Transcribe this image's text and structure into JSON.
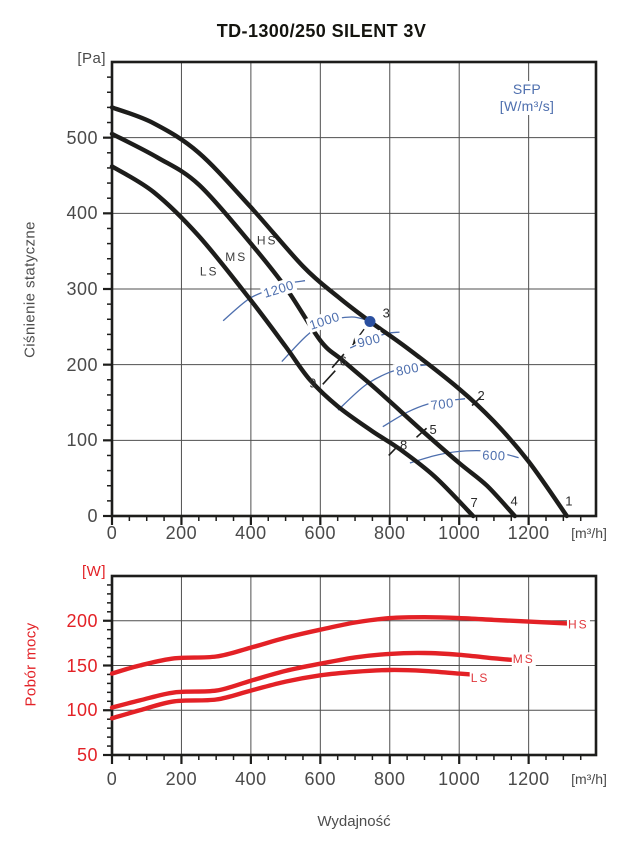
{
  "title": "TD-1300/250 SILENT 3V",
  "xlabel": "Wydajność",
  "colors": {
    "fan_curve": "#1d1d1b",
    "sfp": "#4e6fae",
    "operating_dot": "#2a4f9f",
    "power": "#e32126",
    "power_label": "#e0383d",
    "grid": "#4f4f4f",
    "axis": "#1d1d1b",
    "text": "#4a4a4a"
  },
  "chart_data": [
    {
      "type": "line",
      "name": "static-pressure",
      "title": "",
      "ylabel": "Ciśnienie statyczne",
      "y_unit": "[Pa]",
      "x_unit": "[m³/h]",
      "legend": {
        "line1": "SFP",
        "line2": "[W/m³/s]",
        "position": "top-right"
      },
      "grid": true,
      "xlim": [
        0,
        1394
      ],
      "ylim": [
        0,
        600
      ],
      "x_ticks": [
        0,
        200,
        400,
        600,
        800,
        1000,
        1200
      ],
      "x_minor_step": 50,
      "y_ticks": [
        0,
        100,
        200,
        300,
        400,
        500
      ],
      "y_minor_step": 20,
      "series": [
        {
          "name": "HS",
          "label_at": [
            447,
            364
          ],
          "points": [
            [
              0,
              540
            ],
            [
              120,
              519
            ],
            [
              250,
              480
            ],
            [
              400,
              408
            ],
            [
              550,
              330
            ],
            [
              650,
              290
            ],
            [
              743,
              257
            ],
            [
              850,
              222
            ],
            [
              1000,
              168
            ],
            [
              1100,
              125
            ],
            [
              1200,
              72
            ],
            [
              1310,
              0
            ]
          ]
        },
        {
          "name": "MS",
          "label_at": [
            358,
            342
          ],
          "points": [
            [
              0,
              505
            ],
            [
              130,
              474
            ],
            [
              250,
              438
            ],
            [
              400,
              360
            ],
            [
              500,
              302
            ],
            [
              600,
              232
            ],
            [
              663,
              206
            ],
            [
              760,
              168
            ],
            [
              900,
              110
            ],
            [
              1000,
              70
            ],
            [
              1080,
              40
            ],
            [
              1160,
              0
            ]
          ]
        },
        {
          "name": "LS",
          "label_at": [
            280,
            323
          ],
          "points": [
            [
              0,
              462
            ],
            [
              120,
              428
            ],
            [
              250,
              370
            ],
            [
              400,
              285
            ],
            [
              500,
              224
            ],
            [
              570,
              180
            ],
            [
              650,
              145
            ],
            [
              750,
              112
            ],
            [
              830,
              88
            ],
            [
              930,
              52
            ],
            [
              1040,
              0
            ]
          ]
        }
      ],
      "sfp_curves": [
        {
          "label": "1200",
          "label_at": [
            480,
            300
          ],
          "angle": -17,
          "points": [
            [
              320,
              258
            ],
            [
              395,
              287
            ],
            [
              460,
              300
            ],
            [
              515,
              308
            ],
            [
              556,
              311
            ]
          ]
        },
        {
          "label": "1000",
          "label_at": [
            612,
            258
          ],
          "angle": -18,
          "points": [
            [
              489,
              204
            ],
            [
              560,
              238
            ],
            [
              620,
              257
            ],
            [
              690,
              263
            ],
            [
              740,
              258
            ]
          ]
        },
        {
          "label": "900",
          "label_at": [
            740,
            232
          ],
          "angle": -14,
          "points": [
            [
              686,
              222
            ],
            [
              740,
              233
            ],
            [
              790,
              241
            ],
            [
              828,
              243
            ]
          ]
        },
        {
          "label": "800",
          "label_at": [
            851,
            194
          ],
          "angle": -11,
          "points": [
            [
              651,
              140
            ],
            [
              730,
              173
            ],
            [
              800,
              190
            ],
            [
              860,
              197
            ],
            [
              914,
              200
            ]
          ]
        },
        {
          "label": "700",
          "label_at": [
            951,
            148
          ],
          "angle": -7,
          "points": [
            [
              780,
              118
            ],
            [
              850,
              137
            ],
            [
              910,
              148
            ],
            [
              960,
              152
            ],
            [
              1017,
              155
            ]
          ]
        },
        {
          "label": "600",
          "label_at": [
            1100,
            80
          ],
          "angle": 2,
          "points": [
            [
              858,
              70
            ],
            [
              940,
              81
            ],
            [
              1020,
              86
            ],
            [
              1100,
              85
            ],
            [
              1171,
              77
            ]
          ]
        }
      ],
      "operating_point": {
        "x": 743,
        "y": 257
      },
      "pointer_arrow": {
        "from": [
          726,
          247
        ],
        "to": [
          693,
          226
        ]
      },
      "point_markers": [
        {
          "n": "1",
          "label_at": [
            1316,
            20
          ]
        },
        {
          "n": "2",
          "label_at": [
            1063,
            159
          ],
          "dash": [
            [
              1037,
              146
            ],
            [
              1062,
              157
            ]
          ]
        },
        {
          "n": "3",
          "label_at": [
            790,
            268
          ]
        },
        {
          "n": "4",
          "label_at": [
            1158,
            20
          ]
        },
        {
          "n": "5",
          "label_at": [
            925,
            114
          ],
          "dash": [
            [
              877,
              104
            ],
            [
              906,
              116
            ]
          ]
        },
        {
          "n": "6",
          "label_at": [
            666,
            205
          ],
          "dash": [
            [
              634,
              196
            ],
            [
              668,
              214
            ]
          ]
        },
        {
          "n": "7",
          "label_at": [
            1043,
            18
          ]
        },
        {
          "n": "8",
          "label_at": [
            840,
            94
          ],
          "dash": [
            [
              797,
              80
            ],
            [
              822,
              92
            ]
          ]
        },
        {
          "n": "9",
          "label_at": [
            578,
            176
          ],
          "dash": [
            [
              607,
              174
            ],
            [
              643,
              192
            ]
          ]
        }
      ]
    },
    {
      "type": "line",
      "name": "power-consumption",
      "title": "",
      "ylabel": "Pobór mocy",
      "y_unit": "[W]",
      "x_unit": "[m³/h]",
      "grid": true,
      "xlim": [
        0,
        1394
      ],
      "ylim": [
        50,
        250
      ],
      "x_ticks": [
        0,
        200,
        400,
        600,
        800,
        1000,
        1200
      ],
      "x_minor_step": 50,
      "y_ticks": [
        50,
        100,
        150,
        200
      ],
      "y_minor_step": 10,
      "series": [
        {
          "name": "HS",
          "label_at": [
            1343,
            196
          ],
          "points": [
            [
              0,
              141
            ],
            [
              80,
              150
            ],
            [
              180,
              158
            ],
            [
              300,
              160
            ],
            [
              400,
              170
            ],
            [
              500,
              181
            ],
            [
              600,
              190
            ],
            [
              700,
              198
            ],
            [
              800,
              203
            ],
            [
              900,
              204
            ],
            [
              1000,
              203
            ],
            [
              1100,
              201
            ],
            [
              1200,
              199
            ],
            [
              1310,
              197
            ]
          ]
        },
        {
          "name": "MS",
          "label_at": [
            1186,
            157
          ],
          "points": [
            [
              0,
              103
            ],
            [
              80,
              111
            ],
            [
              180,
              120
            ],
            [
              300,
              122
            ],
            [
              400,
              133
            ],
            [
              500,
              144
            ],
            [
              600,
              152
            ],
            [
              700,
              159
            ],
            [
              800,
              163
            ],
            [
              900,
              164
            ],
            [
              1000,
              162
            ],
            [
              1100,
              158
            ],
            [
              1160,
              156
            ]
          ]
        },
        {
          "name": "LS",
          "label_at": [
            1060,
            136
          ],
          "points": [
            [
              0,
              91
            ],
            [
              80,
              100
            ],
            [
              180,
              110
            ],
            [
              300,
              112
            ],
            [
              400,
              122
            ],
            [
              500,
              132
            ],
            [
              600,
              139
            ],
            [
              700,
              143
            ],
            [
              800,
              145
            ],
            [
              900,
              144
            ],
            [
              1000,
              141
            ],
            [
              1040,
              140
            ]
          ]
        }
      ]
    }
  ]
}
